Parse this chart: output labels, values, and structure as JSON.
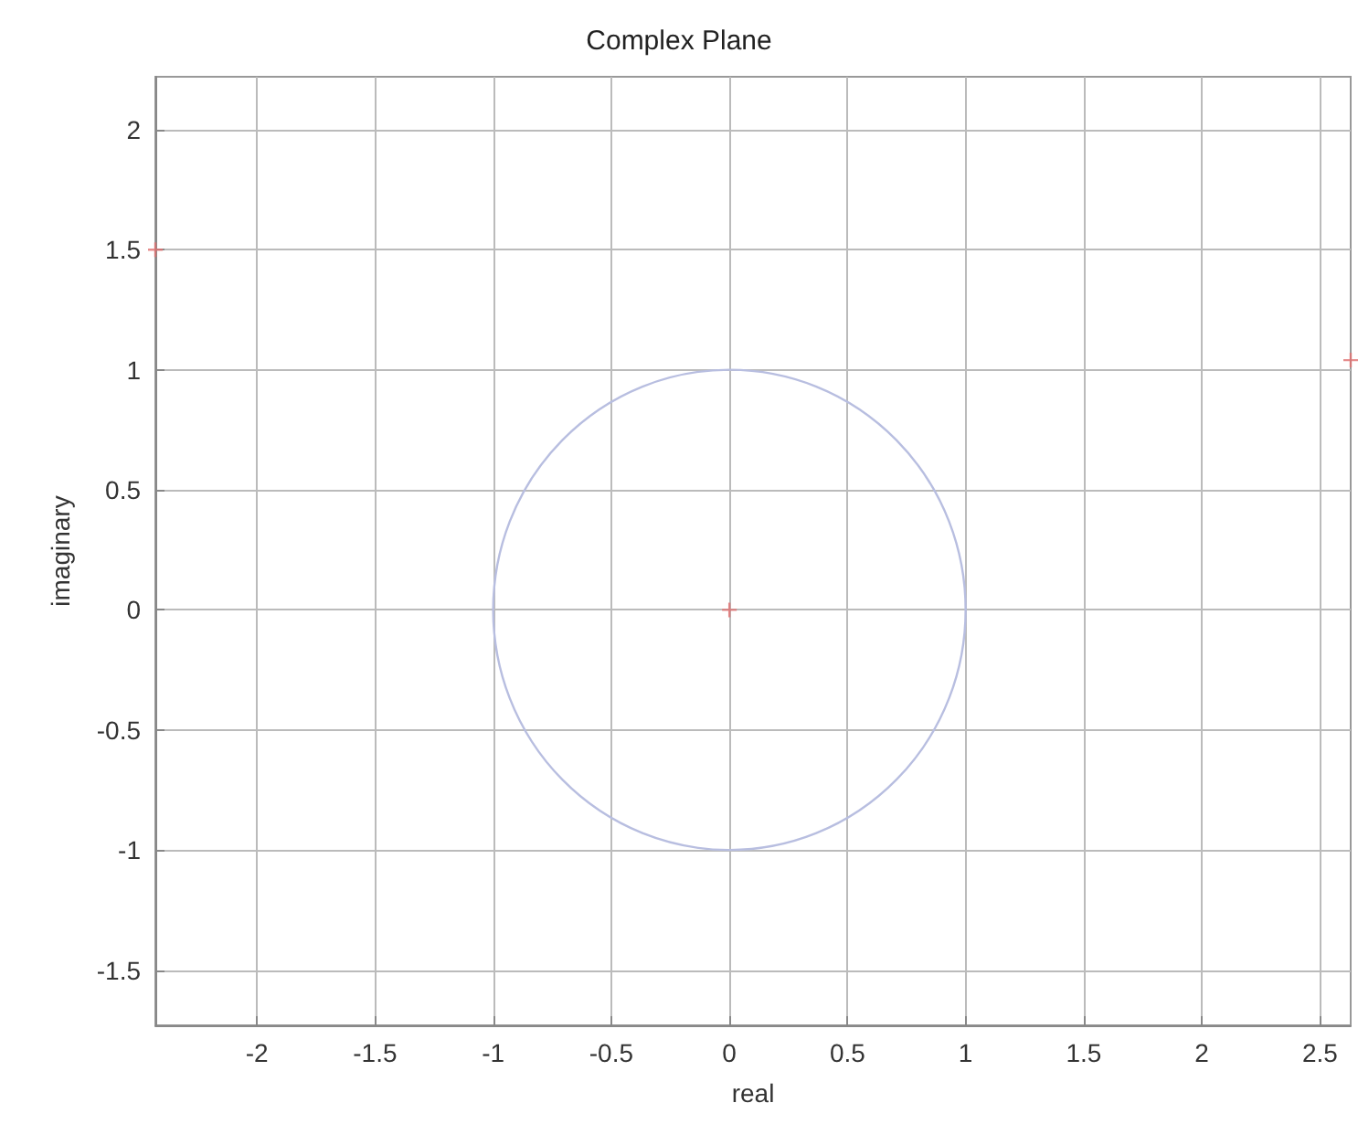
{
  "chart_data": {
    "type": "scatter",
    "title": "Complex Plane",
    "xlabel": "real",
    "ylabel": "imaginary",
    "xlim": [
      -2.43,
      2.63
    ],
    "xticks": [
      -2,
      -1.5,
      -1,
      -0.5,
      0,
      0.5,
      1,
      1.5,
      2,
      2.5
    ],
    "ylim": [
      -1.73,
      2.22
    ],
    "yticks": [
      -1.5,
      -1,
      -0.5,
      0,
      0.5,
      1,
      1.5,
      2
    ],
    "grid": true,
    "marker": "cross",
    "series": [
      {
        "color": "#e07070",
        "x": [
          0,
          -2.43,
          2.63
        ],
        "values": [
          0,
          1.5,
          1.04
        ]
      }
    ]
  }
}
